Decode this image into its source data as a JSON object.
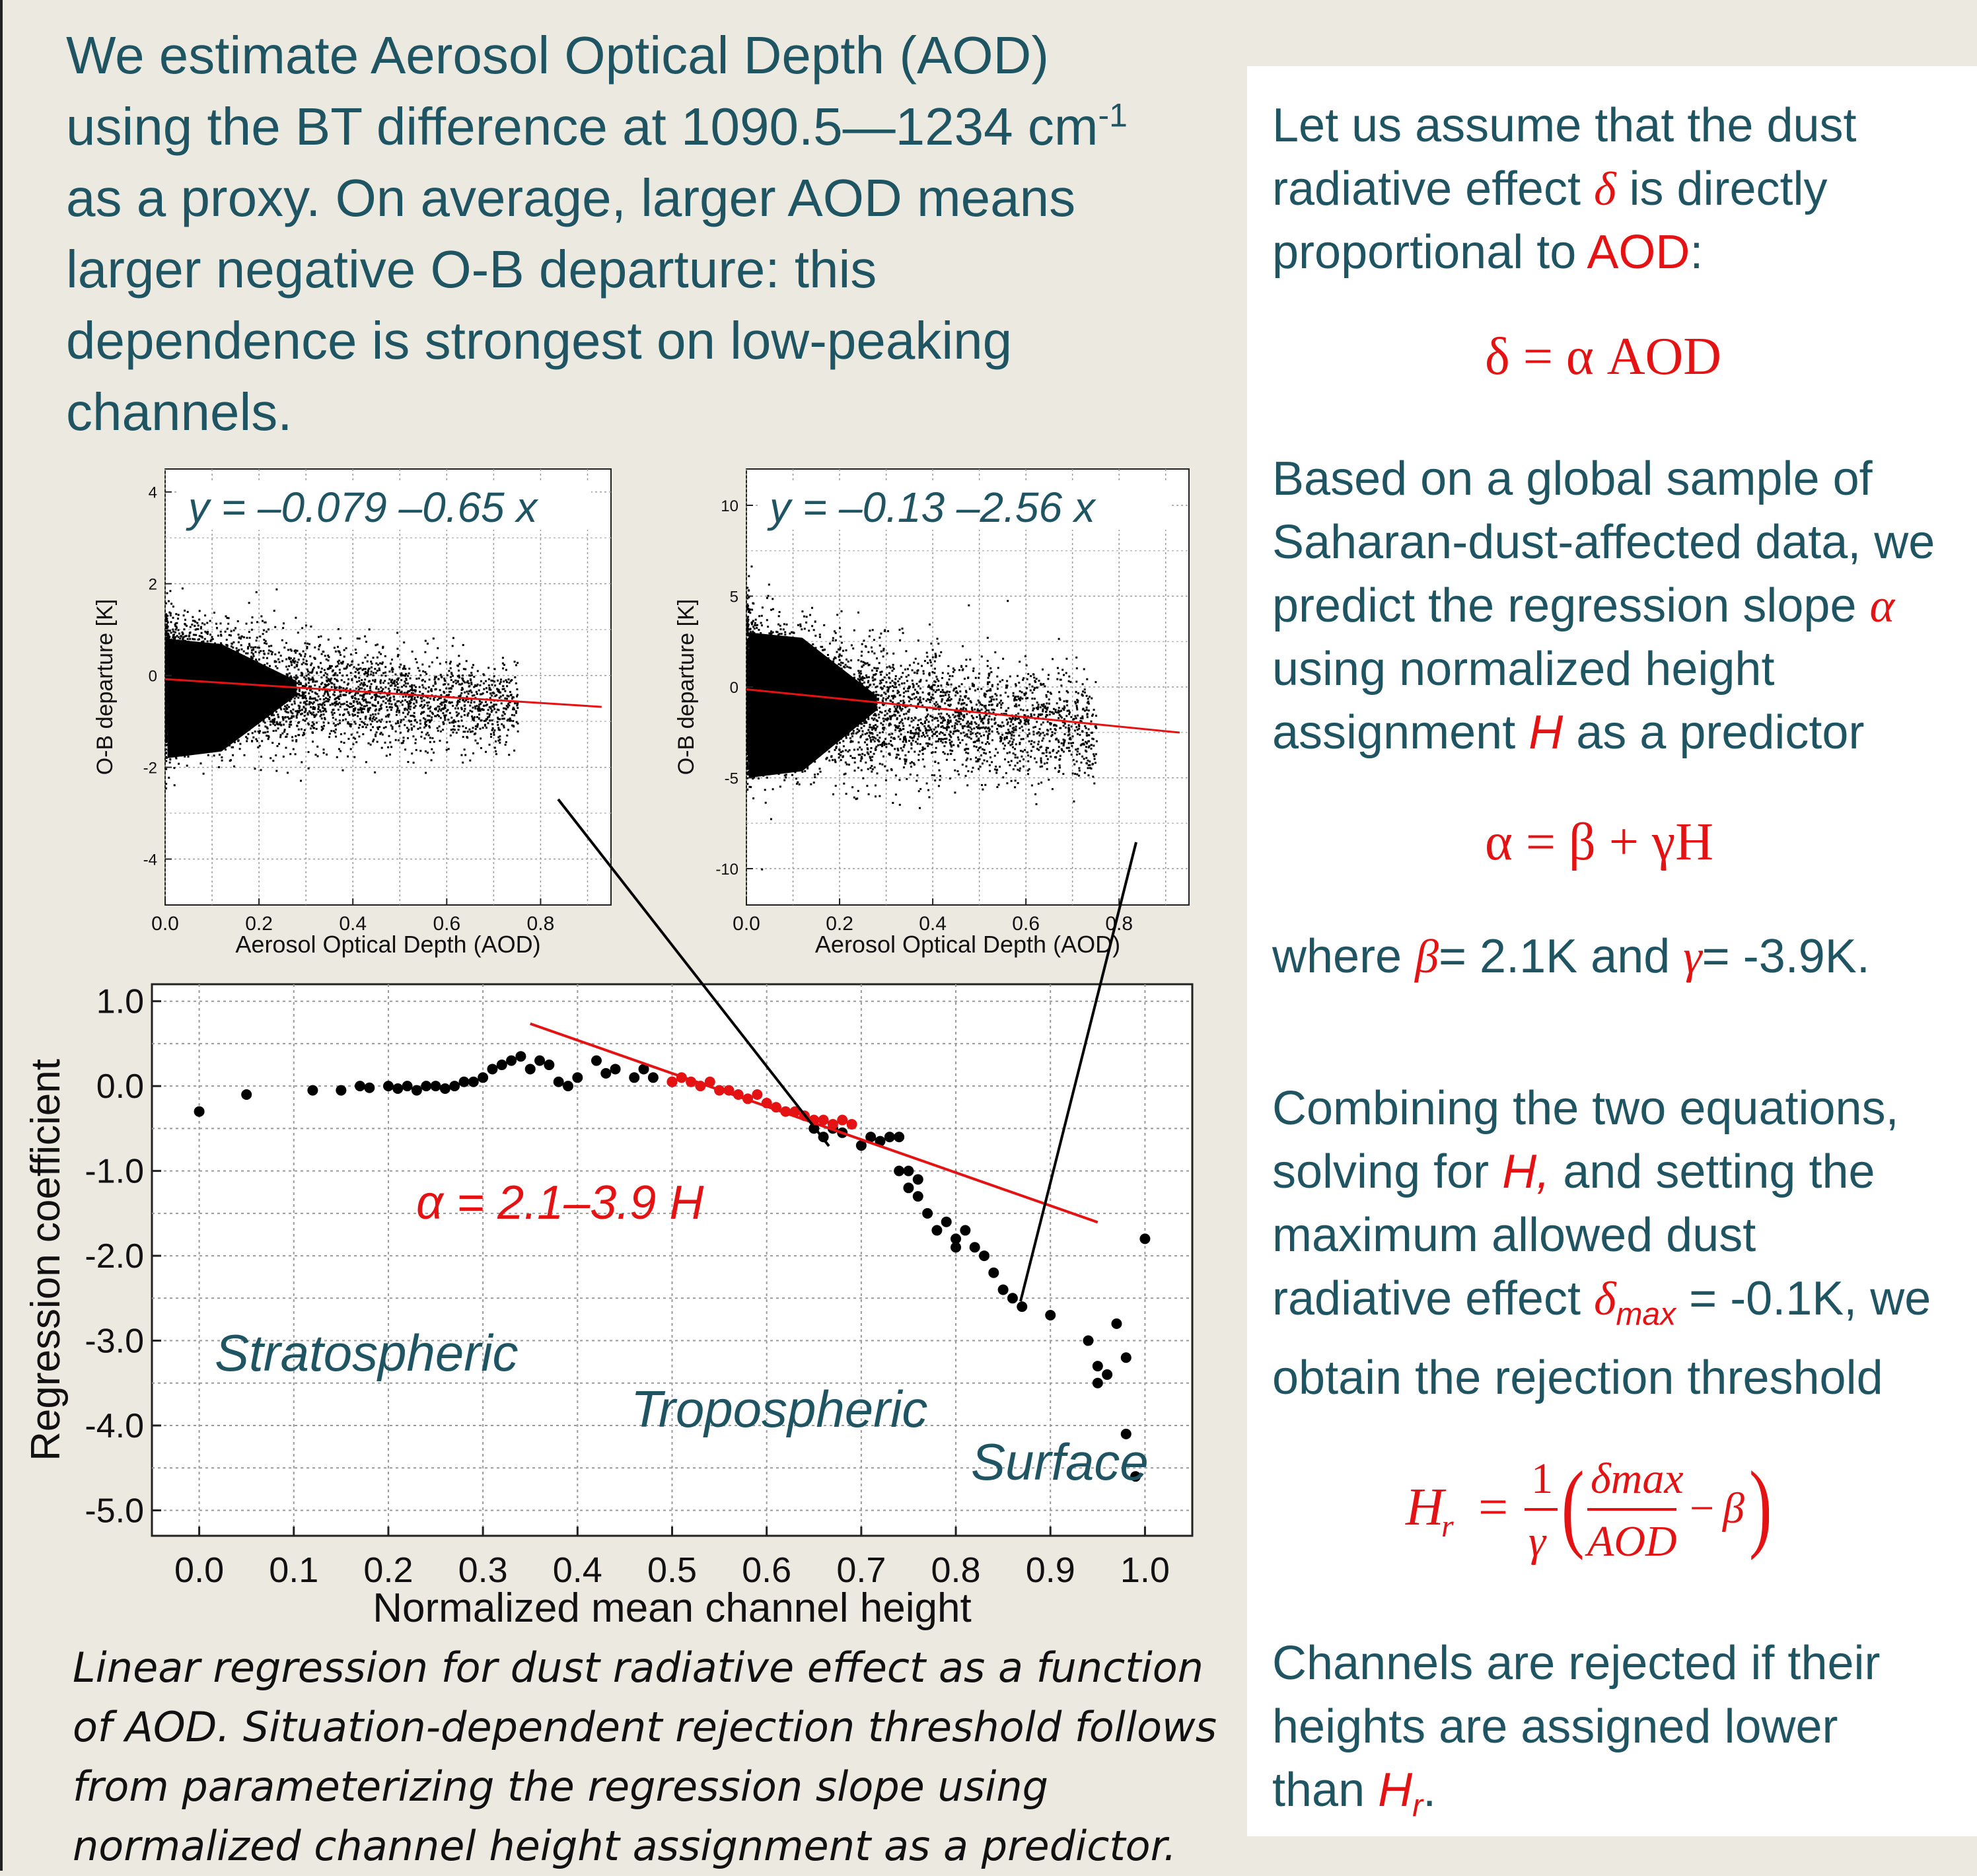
{
  "intro": {
    "line1": "We estimate Aerosol Optical Depth (AOD)",
    "line2a": "using the BT difference at 1090.5—1234 cm",
    "line2sup": "-1",
    "line3": "as a proxy. On average, larger AOD means",
    "line4": "larger negative O-B departure: this",
    "line5": "dependence is strongest on low-peaking",
    "line6": "channels."
  },
  "caption": [
    "Linear regression for dust radiative effect as a function",
    "of AOD. Situation-dependent rejection threshold follows",
    "from parameterizing the regression slope using",
    "normalized channel height assignment as a predictor."
  ],
  "right_panel": {
    "p1": {
      "l1": "Let us assume that the dust",
      "l2a": "radiative effect",
      "l2sym": "δ",
      "l2b": "is directly",
      "l3a": "proportional to",
      "l3red": "AOD",
      "l3b": ":"
    },
    "eq1": {
      "lhs": "δ",
      "eqsign": "=",
      "rhs": "α AOD"
    },
    "p2": {
      "l1": "Based on a global sample of",
      "l2": "Saharan-dust-affected data, we",
      "l3a": "predict the regression slope",
      "l3sym": "α",
      "l4": "using normalized height",
      "l5a": "assignment",
      "l5sym": "H",
      "l5b": "as a predictor"
    },
    "eq2": {
      "lhs": "α",
      "eqsign": "=",
      "rhs": "β + γH"
    },
    "p3": {
      "a": "where",
      "beta": "β",
      "b": "= 2.1K and",
      "gamma": "γ",
      "c": "= -3.9K."
    },
    "p4": {
      "l1": "Combining the two equations,",
      "l2a": "solving for",
      "l2sym": "H,",
      "l2b": "and setting the",
      "l3": "maximum allowed dust",
      "l4a": "radiative effect",
      "l4sym": "δ",
      "l4sub": "max",
      "l4b": "= -0.1K, we",
      "l5": "obtain the rejection threshold"
    },
    "eq3": {
      "lhs": "H",
      "lhs_sub": "r",
      "eqsign": "=",
      "frac_num": "1",
      "frac_den": "γ",
      "inner_num": "δmax",
      "inner_den": "AOD",
      "minus": "−",
      "beta": "β"
    },
    "p5": {
      "l1": "Channels are rejected if their",
      "l2": "heights are assigned lower",
      "l3a": "than",
      "l3sym": "H",
      "l3sub": "r",
      "l3b": "."
    }
  },
  "chart_data": [
    {
      "type": "scatter",
      "title": "y = –0.079 –0.65 x",
      "xlabel": "Aerosol Optical Depth (AOD)",
      "ylabel": "O-B departure [K]",
      "xlim": [
        0.0,
        0.95
      ],
      "ylim": [
        -5,
        4.5
      ],
      "xticks": [
        "0.0",
        "0.2",
        "0.4",
        "0.6",
        "0.8"
      ],
      "yticks": [
        "4",
        "2",
        "0",
        "-2",
        "-4"
      ],
      "fit": {
        "intercept": -0.079,
        "slope": -0.65,
        "x": [
          0.0,
          0.93
        ]
      },
      "cloud": {
        "x_core": [
          0.0,
          0.3
        ],
        "y_core": [
          -1.8,
          0.8
        ]
      },
      "grid": true
    },
    {
      "type": "scatter",
      "title": "y = –0.13 –2.56 x",
      "xlabel": "Aerosol Optical Depth (AOD)",
      "ylabel": "O-B departure [K]",
      "xlim": [
        0.0,
        0.95
      ],
      "ylim": [
        -12,
        12
      ],
      "xticks": [
        "0.0",
        "0.2",
        "0.4",
        "0.6",
        "0.8"
      ],
      "yticks": [
        "10",
        "5",
        "0",
        "-5",
        "-10"
      ],
      "fit": {
        "intercept": -0.13,
        "slope": -2.56,
        "x": [
          0.0,
          0.93
        ]
      },
      "cloud": {
        "x_core": [
          0.0,
          0.3
        ],
        "y_core": [
          -5,
          3
        ]
      },
      "grid": true
    },
    {
      "type": "scatter",
      "xlabel": "Normalized mean channel height",
      "ylabel": "Regression coefficient",
      "xlim": [
        -0.05,
        1.05
      ],
      "ylim": [
        -5.3,
        1.2
      ],
      "xticks": [
        "0.0",
        "0.1",
        "0.2",
        "0.3",
        "0.4",
        "0.5",
        "0.6",
        "0.7",
        "0.8",
        "0.9",
        "1.0"
      ],
      "yticks": [
        "1.0",
        "0.0",
        "-1.0",
        "-2.0",
        "-3.0",
        "-4.0",
        "-5.0"
      ],
      "fit_label": "α = 2.1–3.9 H",
      "fit": {
        "intercept": 2.1,
        "slope": -3.9,
        "x": [
          0.35,
          0.95
        ]
      },
      "region_labels": [
        "Stratospheric",
        "Tropospheric",
        "Surface"
      ],
      "series": [
        {
          "color": "#000000",
          "x": [
            0.0,
            0.05,
            0.12,
            0.15,
            0.17,
            0.18,
            0.2,
            0.21,
            0.22,
            0.23,
            0.24,
            0.25,
            0.26,
            0.27,
            0.28,
            0.29,
            0.3,
            0.31,
            0.32,
            0.33,
            0.34,
            0.35,
            0.36,
            0.37,
            0.38,
            0.39,
            0.4,
            0.42,
            0.43,
            0.44,
            0.46,
            0.47,
            0.48,
            0.5,
            0.65,
            0.66,
            0.67,
            0.68,
            0.7,
            0.71,
            0.72,
            0.73,
            0.74,
            0.74,
            0.75,
            0.75,
            0.76,
            0.76,
            0.77,
            0.78,
            0.79,
            0.8,
            0.8,
            0.81,
            0.82,
            0.83,
            0.84,
            0.85,
            0.86,
            0.87,
            0.9,
            0.94,
            0.95,
            0.95,
            0.96,
            0.97,
            0.98,
            0.98,
            0.99,
            1.0
          ],
          "y": [
            -0.3,
            -0.1,
            -0.05,
            -0.05,
            0.0,
            -0.02,
            0.0,
            -0.03,
            0.0,
            -0.05,
            0.0,
            0.0,
            -0.03,
            0.0,
            0.05,
            0.05,
            0.1,
            0.2,
            0.25,
            0.3,
            0.35,
            0.2,
            0.3,
            0.25,
            0.05,
            0.0,
            0.1,
            0.3,
            0.15,
            0.2,
            0.1,
            0.2,
            0.1,
            0.05,
            -0.5,
            -0.6,
            -0.5,
            -0.55,
            -0.7,
            -0.6,
            -0.65,
            -0.6,
            -0.6,
            -1.0,
            -1.0,
            -1.2,
            -1.1,
            -1.3,
            -1.5,
            -1.7,
            -1.6,
            -1.8,
            -1.9,
            -1.7,
            -1.9,
            -2.0,
            -2.2,
            -2.4,
            -2.5,
            -2.6,
            -2.7,
            -3.0,
            -3.3,
            -3.5,
            -3.4,
            -2.8,
            -3.2,
            -4.1,
            -4.6,
            -1.8
          ]
        },
        {
          "color": "#e41212",
          "x": [
            0.5,
            0.51,
            0.52,
            0.53,
            0.54,
            0.55,
            0.56,
            0.57,
            0.58,
            0.59,
            0.6,
            0.61,
            0.62,
            0.63,
            0.64,
            0.65,
            0.66,
            0.67,
            0.68,
            0.69
          ],
          "y": [
            0.05,
            0.1,
            0.05,
            0.0,
            0.05,
            -0.05,
            -0.05,
            -0.1,
            -0.15,
            -0.1,
            -0.2,
            -0.25,
            -0.3,
            -0.3,
            -0.35,
            -0.4,
            -0.4,
            -0.45,
            -0.4,
            -0.45
          ]
        }
      ]
    }
  ]
}
